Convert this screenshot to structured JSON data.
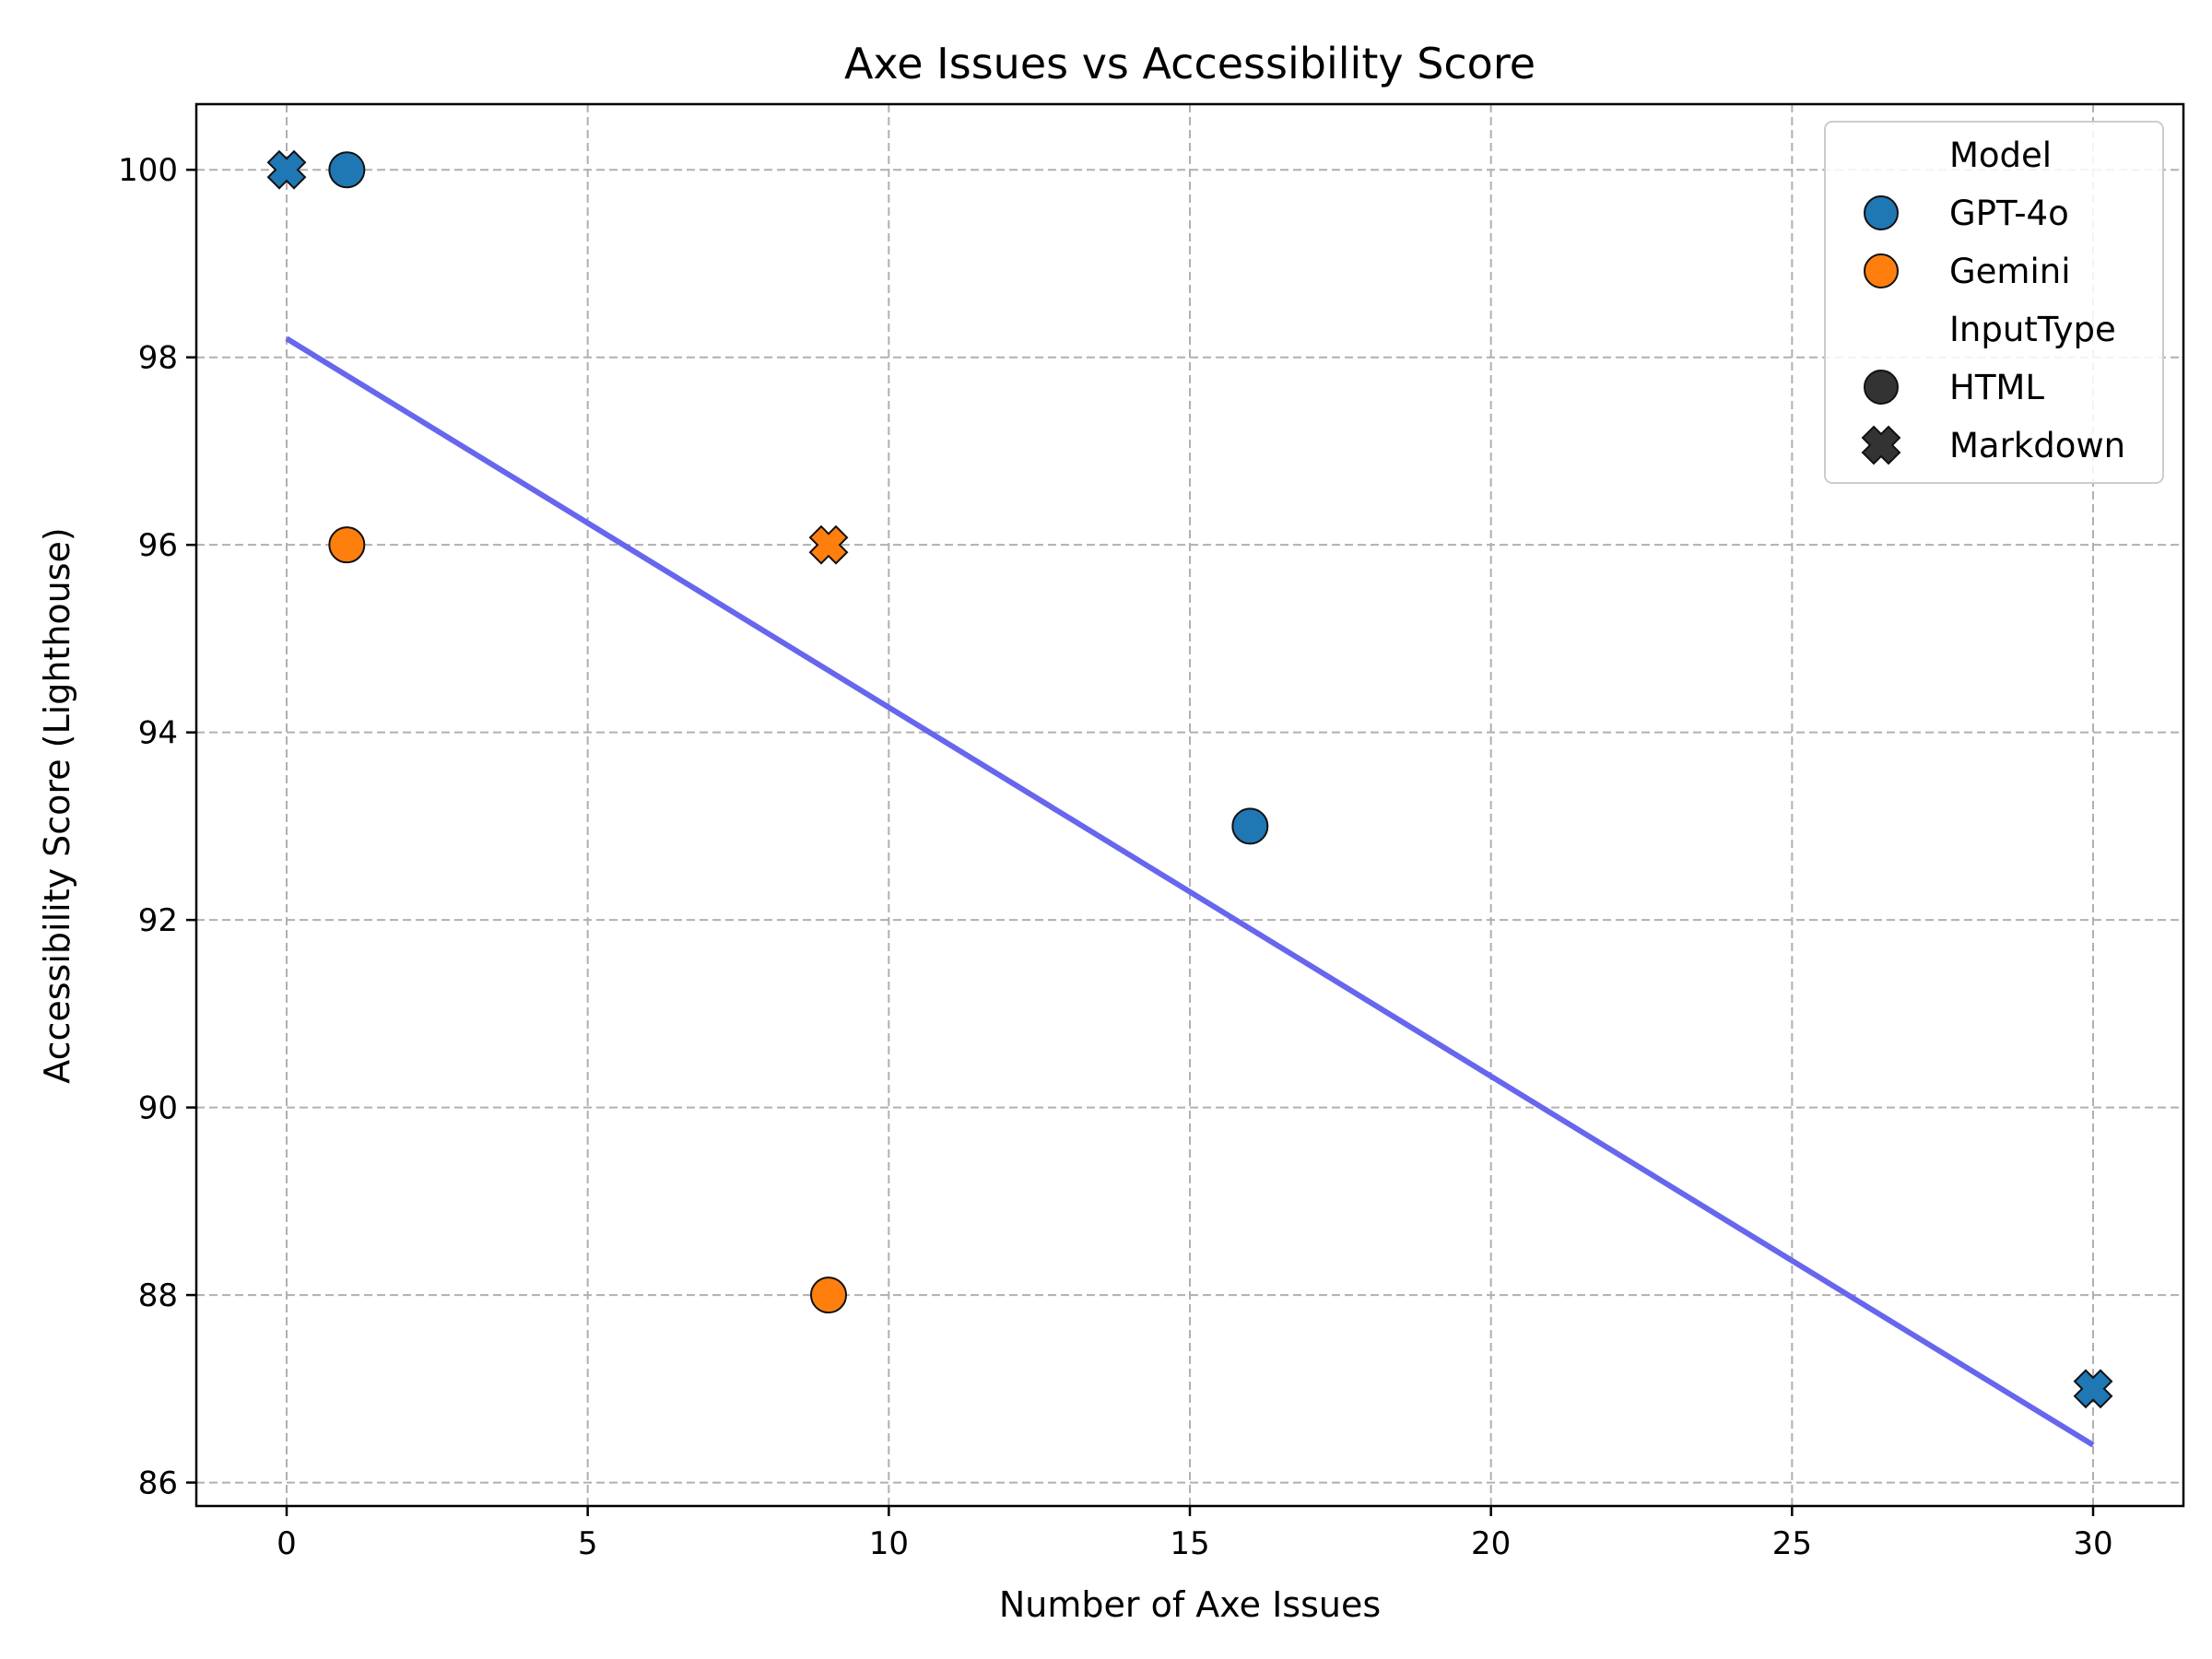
{
  "chart_data": {
    "type": "scatter",
    "title": "Axe Issues vs Accessibility Score",
    "xlabel": "Number of Axe Issues",
    "ylabel": "Accessibility Score (Lighthouse)",
    "xlim": [
      -1.5,
      31.5
    ],
    "ylim": [
      85.75,
      100.7
    ],
    "xticks": [
      0,
      5,
      10,
      15,
      20,
      25,
      30
    ],
    "yticks": [
      86,
      88,
      90,
      92,
      94,
      96,
      98,
      100
    ],
    "grid": true,
    "legend_position": "top-right",
    "colors": {
      "GPT-4o": "#1f77b4",
      "Gemini": "#ff7f0e",
      "regression": "#6666ee",
      "marker_edge": "#111111",
      "legend_marker_neutral": "#333333"
    },
    "legend": {
      "hue_title": "Model",
      "hue_entries": [
        "GPT-4o",
        "Gemini"
      ],
      "style_title": "InputType",
      "style_entries": [
        "HTML",
        "Markdown"
      ]
    },
    "series": [
      {
        "model": "GPT-4o",
        "input_type": "Markdown",
        "x": 0,
        "y": 100
      },
      {
        "model": "GPT-4o",
        "input_type": "HTML",
        "x": 1,
        "y": 100
      },
      {
        "model": "Gemini",
        "input_type": "HTML",
        "x": 1,
        "y": 96
      },
      {
        "model": "Gemini",
        "input_type": "Markdown",
        "x": 9,
        "y": 96
      },
      {
        "model": "Gemini",
        "input_type": "HTML",
        "x": 9,
        "y": 88
      },
      {
        "model": "GPT-4o",
        "input_type": "HTML",
        "x": 16,
        "y": 93
      },
      {
        "model": "GPT-4o",
        "input_type": "Markdown",
        "x": 30,
        "y": 87
      }
    ],
    "regression_line": {
      "x": [
        0,
        30
      ],
      "y": [
        98.2,
        86.4
      ]
    }
  }
}
